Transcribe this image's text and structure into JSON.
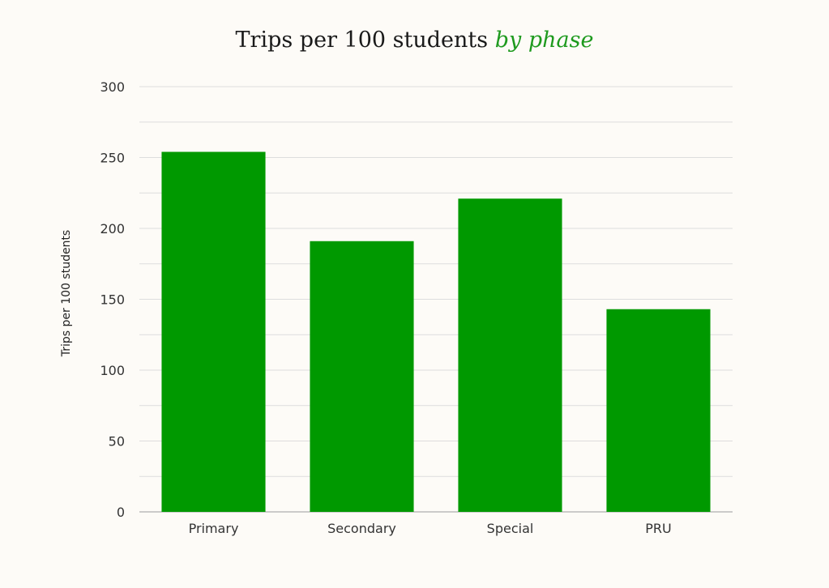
{
  "chart_data": {
    "type": "bar",
    "title": "Trips per 100 students",
    "title_accent": "by phase",
    "ylabel": "Trips per 100 students",
    "xlabel": "",
    "categories": [
      "Primary",
      "Secondary",
      "Special",
      "PRU"
    ],
    "values": [
      254,
      191,
      221,
      143
    ],
    "ylim": [
      0,
      300
    ],
    "yticks": [
      0,
      50,
      100,
      150,
      200,
      250,
      300
    ],
    "grid": true,
    "legend": "none"
  },
  "colors": {
    "bar": "#009900",
    "accent": "#1e9a1e",
    "grid": "#dddddd",
    "axis": "#bbbbbb",
    "background": "#fdfbf7"
  }
}
